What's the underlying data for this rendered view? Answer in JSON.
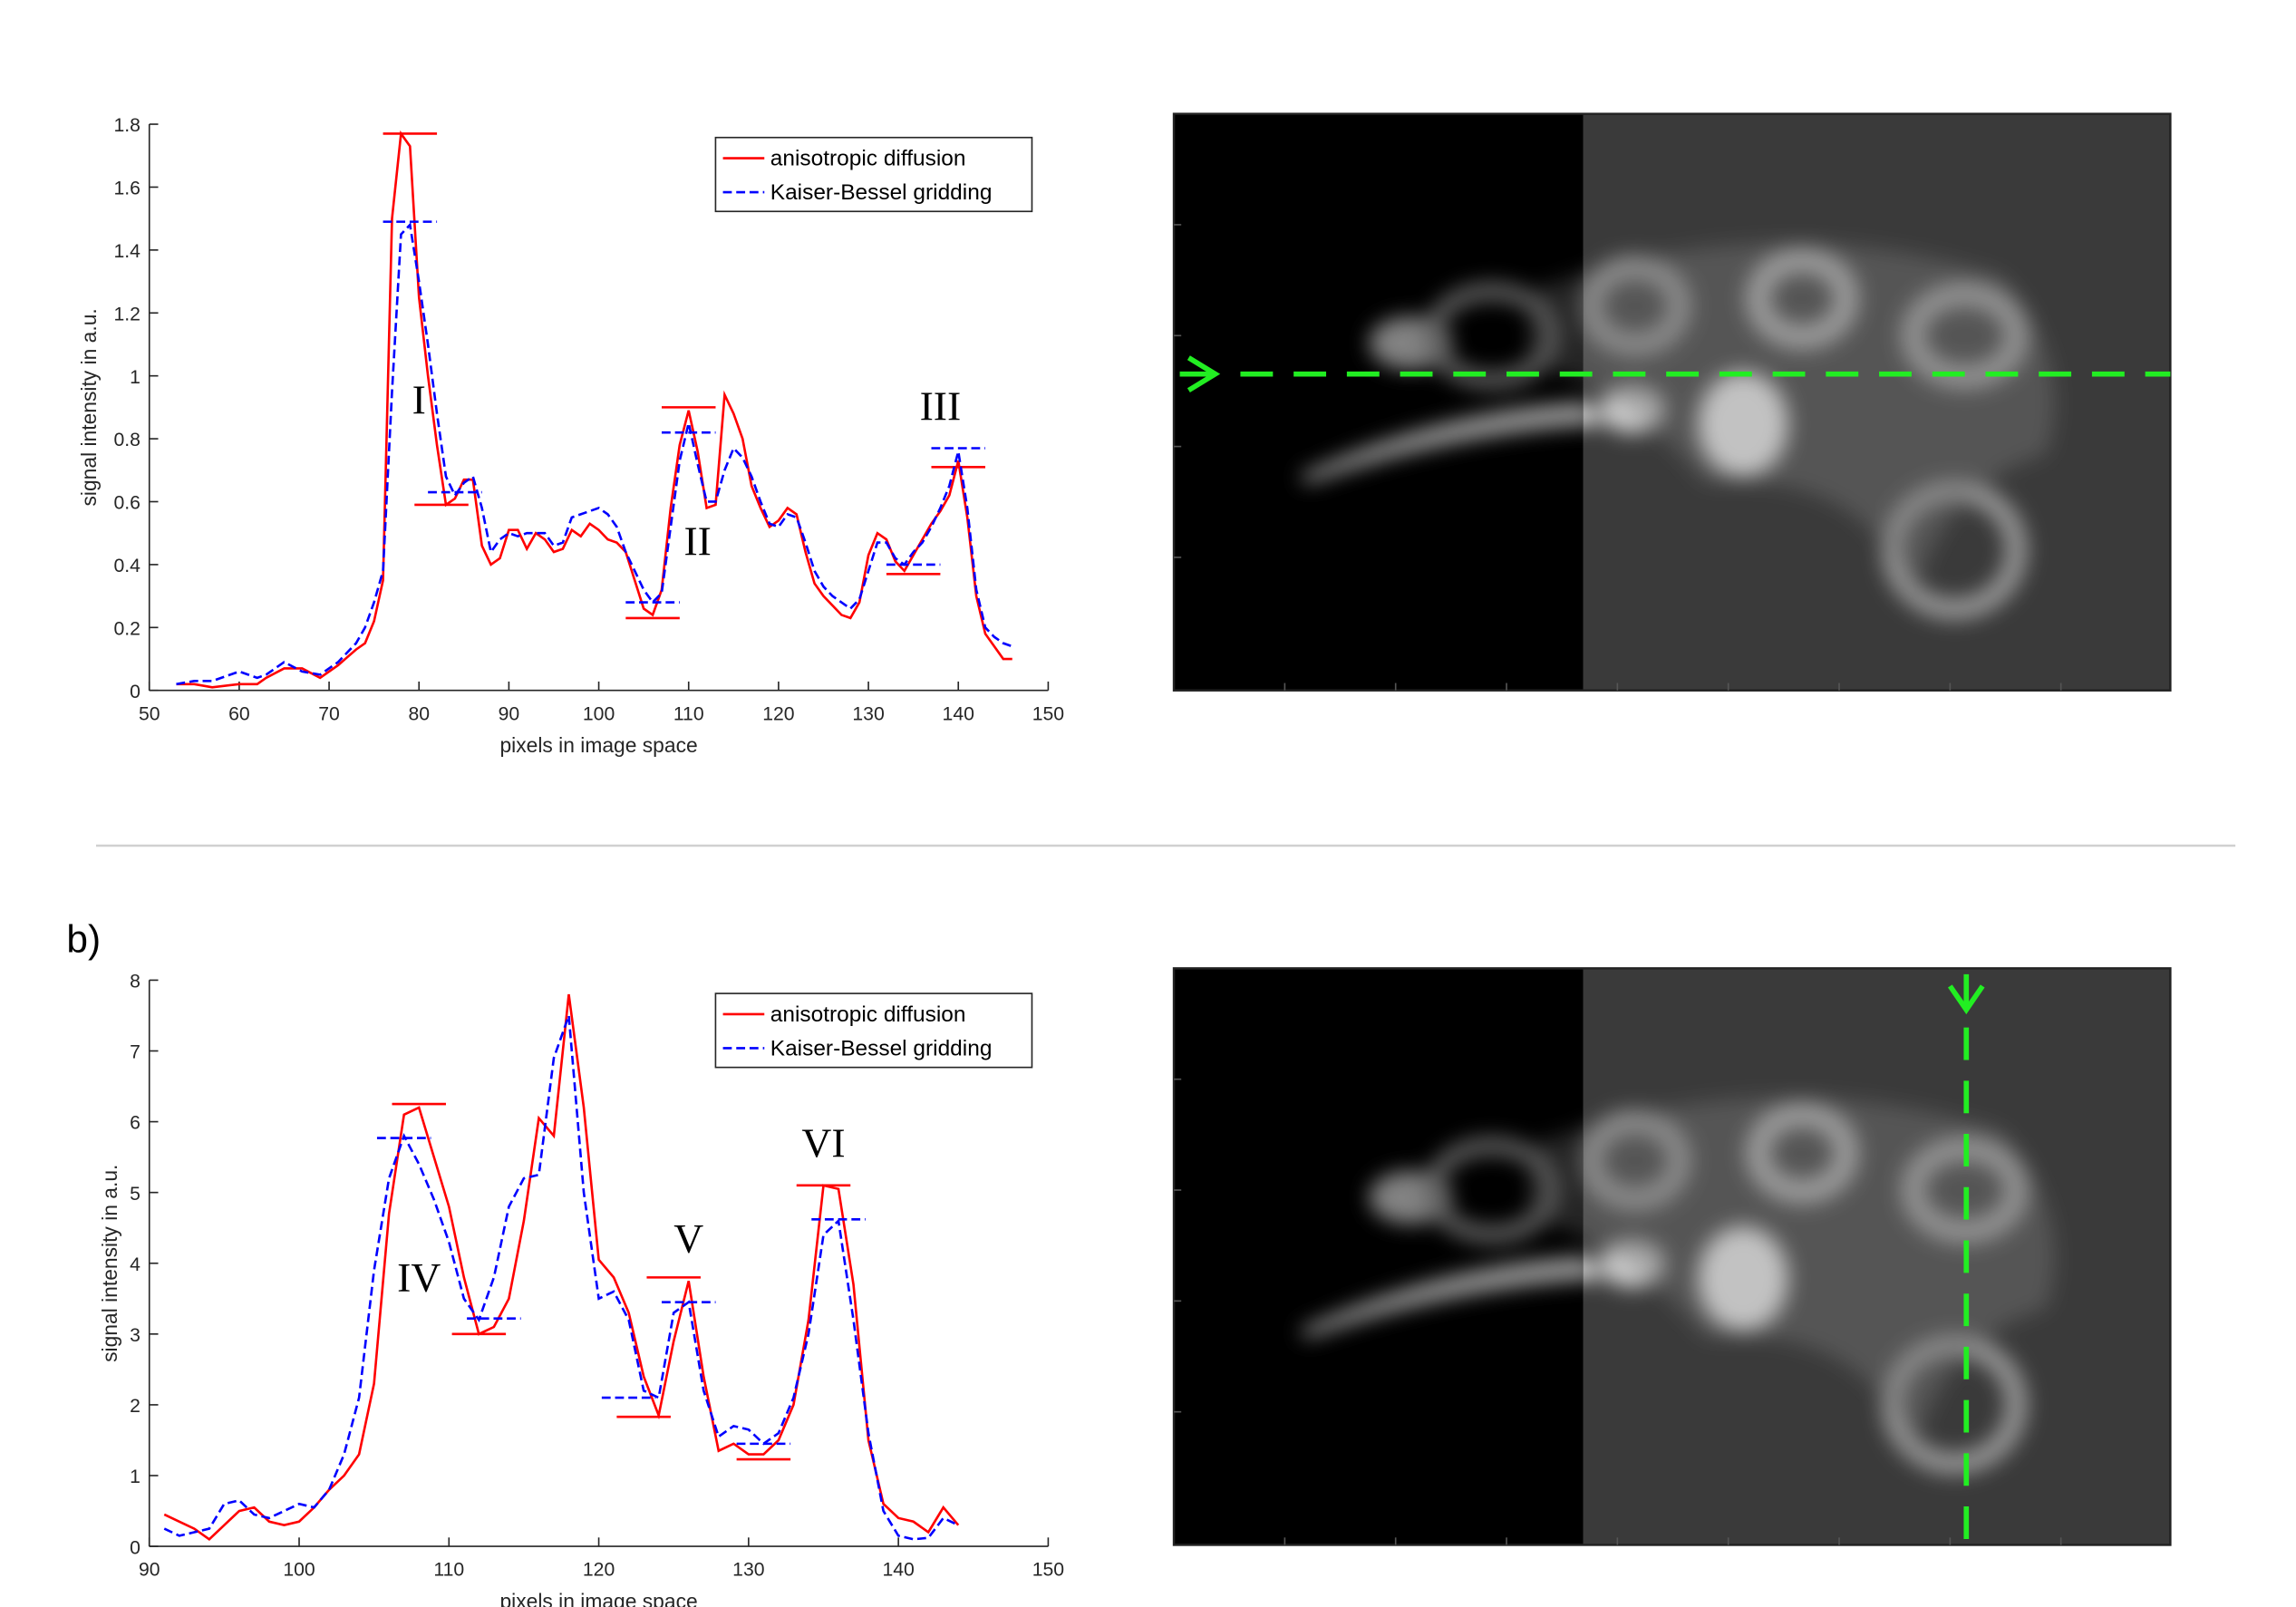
{
  "panel_label": "b)",
  "chart_data": [
    {
      "type": "line",
      "xlabel": "pixels in image space",
      "ylabel": "signal intensity in a.u.",
      "xlim": [
        50,
        150
      ],
      "xticks": [
        50,
        60,
        70,
        80,
        90,
        100,
        110,
        120,
        130,
        140,
        150
      ],
      "ylim": [
        0,
        1.8
      ],
      "yticks": [
        0,
        0.2,
        0.4,
        0.6,
        0.8,
        1,
        1.2,
        1.4,
        1.6,
        1.8
      ],
      "legend": "upper right",
      "x": [
        53,
        55,
        57,
        60,
        62,
        63,
        65,
        67,
        69,
        71,
        73,
        74,
        75,
        76,
        77,
        78,
        79,
        80,
        81,
        82,
        83,
        84,
        85,
        86,
        87,
        88,
        89,
        90,
        91,
        92,
        93,
        94,
        95,
        96,
        97,
        98,
        99,
        100,
        101,
        102,
        103,
        104,
        105,
        106,
        107,
        108,
        109,
        110,
        111,
        112,
        113,
        114,
        115,
        116,
        117,
        118,
        119,
        120,
        121,
        122,
        123,
        124,
        125,
        126,
        127,
        128,
        129,
        130,
        131,
        132,
        133,
        134,
        135,
        136,
        137,
        138,
        139,
        140,
        141,
        142,
        143,
        144,
        145,
        146
      ],
      "series": [
        {
          "name": "anisotropic diffusion",
          "color": "#ff0000",
          "dash": "solid",
          "values": [
            0.02,
            0.02,
            0.01,
            0.02,
            0.02,
            0.04,
            0.07,
            0.07,
            0.04,
            0.08,
            0.13,
            0.15,
            0.22,
            0.35,
            1.5,
            1.77,
            1.73,
            1.25,
            1.0,
            0.78,
            0.59,
            0.61,
            0.67,
            0.67,
            0.46,
            0.4,
            0.42,
            0.51,
            0.51,
            0.45,
            0.5,
            0.48,
            0.44,
            0.45,
            0.51,
            0.49,
            0.53,
            0.51,
            0.48,
            0.47,
            0.44,
            0.35,
            0.26,
            0.24,
            0.32,
            0.58,
            0.78,
            0.89,
            0.76,
            0.58,
            0.59,
            0.94,
            0.88,
            0.8,
            0.65,
            0.58,
            0.52,
            0.54,
            0.58,
            0.56,
            0.44,
            0.34,
            0.3,
            0.27,
            0.24,
            0.23,
            0.28,
            0.43,
            0.5,
            0.48,
            0.41,
            0.38,
            0.43,
            0.48,
            0.53,
            0.57,
            0.62,
            0.73,
            0.55,
            0.3,
            0.18,
            0.14,
            0.1,
            0.1
          ],
          "levels": [
            {
              "x": 79,
              "value": 1.77
            },
            {
              "x": 82.5,
              "value": 0.59
            },
            {
              "x": 110,
              "value": 0.9
            },
            {
              "x": 106,
              "value": 0.23
            },
            {
              "x": 140,
              "value": 0.71
            },
            {
              "x": 135,
              "value": 0.37
            }
          ]
        },
        {
          "name": "Kaiser-Bessel gridding",
          "color": "#0000ff",
          "dash": "dashed",
          "values": [
            0.02,
            0.03,
            0.03,
            0.06,
            0.04,
            0.05,
            0.09,
            0.06,
            0.05,
            0.09,
            0.15,
            0.2,
            0.28,
            0.38,
            0.95,
            1.45,
            1.48,
            1.3,
            1.1,
            0.88,
            0.68,
            0.62,
            0.66,
            0.68,
            0.58,
            0.44,
            0.48,
            0.5,
            0.49,
            0.5,
            0.5,
            0.5,
            0.46,
            0.47,
            0.55,
            0.56,
            0.57,
            0.58,
            0.56,
            0.52,
            0.44,
            0.38,
            0.32,
            0.28,
            0.31,
            0.52,
            0.73,
            0.85,
            0.72,
            0.6,
            0.6,
            0.7,
            0.77,
            0.74,
            0.68,
            0.6,
            0.53,
            0.52,
            0.56,
            0.55,
            0.47,
            0.38,
            0.33,
            0.3,
            0.28,
            0.26,
            0.29,
            0.38,
            0.47,
            0.47,
            0.42,
            0.4,
            0.44,
            0.47,
            0.52,
            0.58,
            0.65,
            0.76,
            0.58,
            0.32,
            0.2,
            0.17,
            0.15,
            0.14
          ],
          "levels": [
            {
              "x": 79,
              "value": 1.49
            },
            {
              "x": 84,
              "value": 0.63
            },
            {
              "x": 110,
              "value": 0.82
            },
            {
              "x": 106,
              "value": 0.28
            },
            {
              "x": 140,
              "value": 0.77
            },
            {
              "x": 135,
              "value": 0.4
            }
          ]
        }
      ],
      "annotations": [
        "I",
        "II",
        "III"
      ]
    },
    {
      "type": "line",
      "xlabel": "pixels in image space",
      "ylabel": "signal intensity in a.u.",
      "xlim": [
        90,
        150
      ],
      "xticks": [
        90,
        100,
        110,
        120,
        130,
        140,
        150
      ],
      "ylim": [
        0,
        8
      ],
      "yticks": [
        0,
        1,
        2,
        3,
        4,
        5,
        6,
        7,
        8
      ],
      "legend": "upper right",
      "x": [
        91,
        92,
        93,
        94,
        95,
        96,
        97,
        98,
        99,
        100,
        101,
        102,
        103,
        104,
        105,
        106,
        107,
        108,
        109,
        110,
        111,
        112,
        113,
        114,
        115,
        116,
        117,
        118,
        119,
        120,
        121,
        122,
        123,
        124,
        125,
        126,
        127,
        128,
        129,
        130,
        131,
        132,
        133,
        134,
        135,
        136,
        137,
        138,
        139,
        140,
        141,
        142,
        143,
        144
      ],
      "series": [
        {
          "name": "anisotropic diffusion",
          "color": "#ff0000",
          "dash": "solid",
          "values": [
            0.45,
            0.35,
            0.25,
            0.1,
            0.3,
            0.5,
            0.55,
            0.35,
            0.3,
            0.35,
            0.55,
            0.8,
            1.0,
            1.3,
            2.3,
            4.7,
            6.1,
            6.2,
            5.5,
            4.8,
            3.8,
            3.0,
            3.1,
            3.5,
            4.6,
            6.05,
            5.8,
            7.8,
            6.2,
            4.05,
            3.8,
            3.3,
            2.4,
            1.85,
            2.9,
            3.75,
            2.4,
            1.35,
            1.45,
            1.3,
            1.3,
            1.5,
            2.0,
            3.2,
            5.1,
            5.05,
            3.7,
            1.5,
            0.6,
            0.4,
            0.35,
            0.2,
            0.55,
            0.3
          ],
          "levels": [
            {
              "x": 108,
              "value": 6.25
            },
            {
              "x": 112,
              "value": 3.0
            },
            {
              "x": 125,
              "value": 3.8
            },
            {
              "x": 123,
              "value": 1.83
            },
            {
              "x": 135,
              "value": 5.1
            },
            {
              "x": 131,
              "value": 1.23
            }
          ]
        },
        {
          "name": "Kaiser-Bessel gridding",
          "color": "#0000ff",
          "dash": "dashed",
          "values": [
            0.25,
            0.15,
            0.2,
            0.25,
            0.6,
            0.65,
            0.45,
            0.4,
            0.5,
            0.6,
            0.55,
            0.8,
            1.3,
            2.1,
            3.9,
            5.2,
            5.8,
            5.4,
            4.9,
            4.3,
            3.5,
            3.2,
            3.8,
            4.8,
            5.2,
            5.25,
            6.9,
            7.5,
            5.0,
            3.5,
            3.6,
            3.2,
            2.2,
            2.1,
            3.3,
            3.45,
            2.2,
            1.55,
            1.7,
            1.65,
            1.45,
            1.6,
            2.1,
            3.0,
            4.4,
            4.6,
            3.2,
            1.6,
            0.5,
            0.15,
            0.1,
            0.12,
            0.4,
            0.3
          ],
          "levels": [
            {
              "x": 107,
              "value": 5.77
            },
            {
              "x": 113,
              "value": 3.22
            },
            {
              "x": 126,
              "value": 3.45
            },
            {
              "x": 122,
              "value": 2.1
            },
            {
              "x": 136,
              "value": 4.62
            },
            {
              "x": 131,
              "value": 1.45
            }
          ]
        }
      ],
      "annotations": [
        "IV",
        "V",
        "VI"
      ]
    }
  ]
}
